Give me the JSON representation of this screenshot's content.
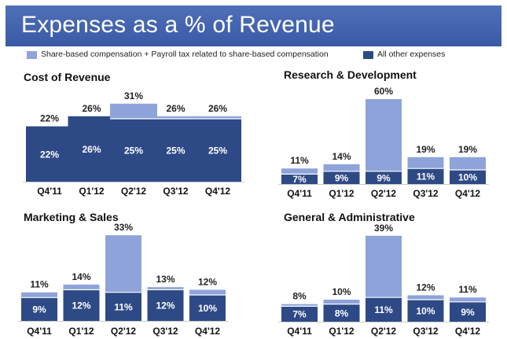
{
  "title": "Expenses as a % of Revenue",
  "legend": {
    "series_a": "Share-based compensation + Payroll tax related to share-based compensation",
    "series_b": "All other expenses"
  },
  "colors": {
    "header": "#3f5fab",
    "share_based": "#8ea3d9",
    "other": "#2e4a86",
    "bar_label_light": "#ffffff"
  },
  "chart_data": [
    {
      "type": "bar",
      "stacked": true,
      "title": "Cost of Revenue",
      "categories": [
        "Q4'11",
        "Q1'12",
        "Q2'12",
        "Q3'12",
        "Q4'12"
      ],
      "series": [
        {
          "name": "All other expenses",
          "values": [
            22,
            26,
            25,
            25,
            25
          ]
        },
        {
          "name": "Share-based compensation + Payroll tax related to share-based compensation",
          "values": [
            0,
            0,
            6,
            1,
            1
          ]
        }
      ],
      "totals": [
        22,
        26,
        31,
        26,
        26
      ],
      "base_labels": [
        "22%",
        "26%",
        "25%",
        "25%",
        "25%"
      ],
      "total_labels": [
        "22%",
        "26%",
        "31%",
        "26%",
        "26%"
      ]
    },
    {
      "type": "bar",
      "stacked": true,
      "title": "Research & Development",
      "categories": [
        "Q4'11",
        "Q1'12",
        "Q2'12",
        "Q3'12",
        "Q4'12"
      ],
      "series": [
        {
          "name": "All other expenses",
          "values": [
            7,
            9,
            9,
            11,
            10
          ]
        },
        {
          "name": "Share-based compensation + Payroll tax related to share-based compensation",
          "values": [
            4,
            5,
            51,
            8,
            9
          ]
        }
      ],
      "totals": [
        11,
        14,
        60,
        19,
        19
      ],
      "base_labels": [
        "7%",
        "9%",
        "9%",
        "11%",
        "10%"
      ],
      "total_labels": [
        "11%",
        "14%",
        "60%",
        "19%",
        "19%"
      ]
    },
    {
      "type": "bar",
      "stacked": true,
      "title": "Marketing & Sales",
      "categories": [
        "Q4'11",
        "Q1'12",
        "Q2'12",
        "Q3'12",
        "Q4'12"
      ],
      "series": [
        {
          "name": "All other expenses",
          "values": [
            9,
            12,
            11,
            12,
            10
          ]
        },
        {
          "name": "Share-based compensation + Payroll tax related to share-based compensation",
          "values": [
            2,
            2,
            22,
            1,
            2
          ]
        }
      ],
      "totals": [
        11,
        14,
        33,
        13,
        12
      ],
      "base_labels": [
        "9%",
        "12%",
        "11%",
        "12%",
        "10%"
      ],
      "total_labels": [
        "11%",
        "14%",
        "33%",
        "13%",
        "12%"
      ]
    },
    {
      "type": "bar",
      "stacked": true,
      "title": "General & Administrative",
      "categories": [
        "Q4'11",
        "Q1'12",
        "Q2'12",
        "Q3'12",
        "Q4'12"
      ],
      "series": [
        {
          "name": "All other expenses",
          "values": [
            7,
            8,
            11,
            10,
            9
          ]
        },
        {
          "name": "Share-based compensation + Payroll tax related to share-based compensation",
          "values": [
            1,
            2,
            28,
            2,
            2
          ]
        }
      ],
      "totals": [
        8,
        10,
        39,
        12,
        11
      ],
      "base_labels": [
        "7%",
        "8%",
        "11%",
        "10%",
        "9%"
      ],
      "total_labels": [
        "8%",
        "10%",
        "39%",
        "12%",
        "11%"
      ]
    }
  ]
}
